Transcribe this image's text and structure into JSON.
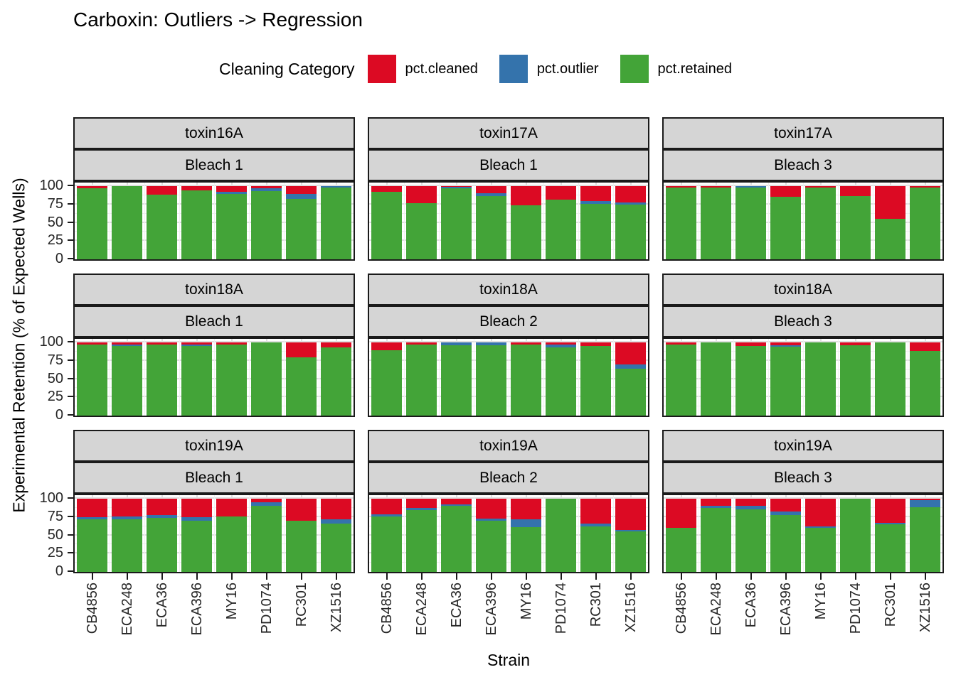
{
  "chart_data": {
    "type": "bar",
    "variant": "stacked-percent-faceted",
    "title": "Carboxin: Outliers -> Regression",
    "legend_title": "Cleaning Category",
    "legend_position": "top",
    "xlabel": "Strain",
    "ylabel": "Experimental Retention (% of Expected Wells)",
    "ylim": [
      0,
      100
    ],
    "yticks": [
      "0",
      "25",
      "50",
      "75",
      "100"
    ],
    "grid": true,
    "categories": [
      "CB4856",
      "ECA248",
      "ECA36",
      "ECA396",
      "MY16",
      "PD1074",
      "RC301",
      "XZ1516"
    ],
    "series": [
      {
        "name": "pct.cleaned",
        "color": "#DC0A23"
      },
      {
        "name": "pct.outlier",
        "color": "#3473AC"
      },
      {
        "name": "pct.retained",
        "color": "#43A438"
      }
    ],
    "facets": [
      {
        "row": 0,
        "col": 0,
        "toxin": "toxin16A",
        "bleach": "Bleach 1",
        "pct_cleaned": [
          3,
          0,
          12,
          6,
          8,
          3,
          11,
          0
        ],
        "pct_outlier": [
          0,
          0,
          0,
          0,
          3,
          4,
          6,
          2
        ],
        "pct_retained": [
          97,
          100,
          88,
          94,
          89,
          93,
          83,
          98
        ]
      },
      {
        "row": 0,
        "col": 1,
        "toxin": "toxin17A",
        "bleach": "Bleach 1",
        "pct_cleaned": [
          8,
          23,
          1,
          10,
          26,
          18,
          20,
          22
        ],
        "pct_outlier": [
          0,
          0,
          2,
          4,
          0,
          0,
          4,
          3
        ],
        "pct_retained": [
          92,
          77,
          97,
          86,
          74,
          82,
          76,
          75
        ]
      },
      {
        "row": 0,
        "col": 2,
        "toxin": "toxin17A",
        "bleach": "Bleach 3",
        "pct_cleaned": [
          2,
          2,
          0,
          15,
          2,
          14,
          45,
          2
        ],
        "pct_outlier": [
          0,
          0,
          2,
          0,
          0,
          0,
          0,
          0
        ],
        "pct_retained": [
          98,
          98,
          98,
          85,
          98,
          86,
          55,
          98
        ]
      },
      {
        "row": 1,
        "col": 0,
        "toxin": "toxin18A",
        "bleach": "Bleach 1",
        "pct_cleaned": [
          3,
          3,
          3,
          3,
          3,
          0,
          20,
          7
        ],
        "pct_outlier": [
          0,
          2,
          0,
          2,
          0,
          0,
          0,
          0
        ],
        "pct_retained": [
          97,
          95,
          97,
          95,
          97,
          100,
          80,
          93
        ]
      },
      {
        "row": 1,
        "col": 1,
        "toxin": "toxin18A",
        "bleach": "Bleach 2",
        "pct_cleaned": [
          11,
          3,
          0,
          0,
          3,
          3,
          5,
          30
        ],
        "pct_outlier": [
          0,
          0,
          4,
          4,
          0,
          4,
          0,
          6
        ],
        "pct_retained": [
          89,
          97,
          96,
          96,
          97,
          93,
          95,
          64
        ]
      },
      {
        "row": 1,
        "col": 2,
        "toxin": "toxin18A",
        "bleach": "Bleach 3",
        "pct_cleaned": [
          3,
          0,
          5,
          4,
          0,
          4,
          0,
          12
        ],
        "pct_outlier": [
          0,
          0,
          0,
          2,
          0,
          0,
          0,
          0
        ],
        "pct_retained": [
          97,
          100,
          95,
          94,
          100,
          96,
          100,
          88
        ]
      },
      {
        "row": 2,
        "col": 0,
        "toxin": "toxin19A",
        "bleach": "Bleach 1",
        "pct_cleaned": [
          25,
          24,
          22,
          25,
          24,
          5,
          30,
          28
        ],
        "pct_outlier": [
          3,
          4,
          4,
          5,
          0,
          5,
          0,
          6
        ],
        "pct_retained": [
          72,
          72,
          74,
          70,
          76,
          90,
          70,
          66
        ]
      },
      {
        "row": 2,
        "col": 1,
        "toxin": "toxin19A",
        "bleach": "Bleach 2",
        "pct_cleaned": [
          21,
          13,
          8,
          27,
          28,
          0,
          34,
          43
        ],
        "pct_outlier": [
          3,
          3,
          2,
          3,
          11,
          0,
          4,
          2
        ],
        "pct_retained": [
          76,
          84,
          90,
          70,
          61,
          100,
          62,
          55
        ]
      },
      {
        "row": 2,
        "col": 2,
        "toxin": "toxin19A",
        "bleach": "Bleach 3",
        "pct_cleaned": [
          40,
          10,
          10,
          17,
          38,
          0,
          33,
          2
        ],
        "pct_outlier": [
          0,
          3,
          5,
          5,
          2,
          0,
          2,
          10
        ],
        "pct_retained": [
          60,
          87,
          85,
          78,
          60,
          100,
          65,
          88
        ]
      }
    ]
  }
}
